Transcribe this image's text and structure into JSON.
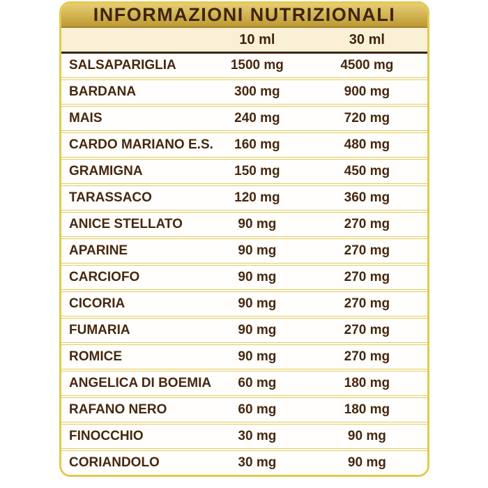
{
  "table": {
    "title": "INFORMAZIONI NUTRIZIONALI",
    "column_headers": [
      "10 ml",
      "30 ml"
    ],
    "unit": "mg",
    "rows": [
      {
        "name": "SALSAPARIGLIA",
        "per_10ml": "1500 mg",
        "per_30ml": "4500 mg"
      },
      {
        "name": "BARDANA",
        "per_10ml": "300 mg",
        "per_30ml": "900 mg"
      },
      {
        "name": "MAIS",
        "per_10ml": "240 mg",
        "per_30ml": "720 mg"
      },
      {
        "name": "CARDO MARIANO E.S.",
        "per_10ml": "160 mg",
        "per_30ml": "480 mg"
      },
      {
        "name": "GRAMIGNA",
        "per_10ml": "150 mg",
        "per_30ml": "450 mg"
      },
      {
        "name": "TARASSACO",
        "per_10ml": "120 mg",
        "per_30ml": "360 mg"
      },
      {
        "name": "ANICE STELLATO",
        "per_10ml": "90 mg",
        "per_30ml": "270 mg"
      },
      {
        "name": "APARINE",
        "per_10ml": "90 mg",
        "per_30ml": "270 mg"
      },
      {
        "name": "CARCIOFO",
        "per_10ml": "90 mg",
        "per_30ml": "270 mg"
      },
      {
        "name": "CICORIA",
        "per_10ml": "90 mg",
        "per_30ml": "270 mg"
      },
      {
        "name": "FUMARIA",
        "per_10ml": "90 mg",
        "per_30ml": "270 mg"
      },
      {
        "name": "ROMICE",
        "per_10ml": "90 mg",
        "per_30ml": "270 mg"
      },
      {
        "name": "ANGELICA DI BOEMIA",
        "per_10ml": "60 mg",
        "per_30ml": "180 mg"
      },
      {
        "name": "RAFANO NERO",
        "per_10ml": "60 mg",
        "per_30ml": "180 mg"
      },
      {
        "name": "FINOCCHIO",
        "per_10ml": "30 mg",
        "per_30ml": "90 mg"
      },
      {
        "name": "CORIANDOLO",
        "per_10ml": "30 mg",
        "per_30ml": "90 mg"
      }
    ]
  },
  "colors": {
    "page_background": "#ffffff",
    "card_border": "#e3c94f",
    "title_band_top": "#e7ce74",
    "title_band_bottom": "#bd9931",
    "title_band_edge": "#a3832a",
    "title_text": "#3f2410",
    "subheader_background": "#faf0d6",
    "header_divider": "#3a2510",
    "row_background": "#fffefc",
    "row_separator": "#e2cb5a",
    "row_text": "#46280f"
  }
}
